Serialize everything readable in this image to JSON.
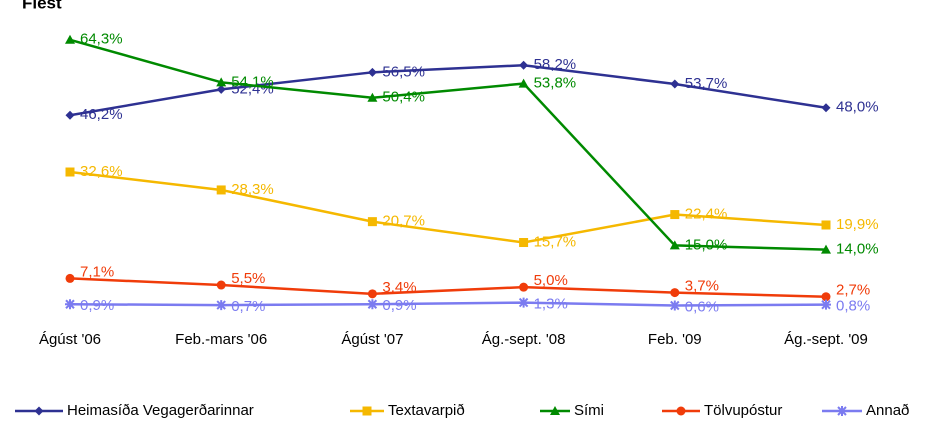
{
  "chart_data": {
    "type": "line",
    "title": "Flest",
    "categories": [
      "Ágúst '06",
      "Feb.-mars '06",
      "Ágúst '07",
      "Ág.-sept. '08",
      "Feb. '09",
      "Ág.-sept. '09"
    ],
    "ylim": [
      0,
      70
    ],
    "series": [
      {
        "name": "Heimasíða Vegagerðarinnar",
        "color": "#2e3192",
        "values": [
          46.2,
          52.4,
          56.5,
          58.2,
          53.7,
          48.0
        ],
        "value_labels": [
          "46,2%",
          "52,4%",
          "56,5%",
          "58,2%",
          "53,7%",
          "48,0%"
        ]
      },
      {
        "name": "Textavarpið",
        "color": "#f5b800",
        "values": [
          32.6,
          28.3,
          20.7,
          15.7,
          22.4,
          19.9
        ],
        "value_labels": [
          "32,6%",
          "28,3%",
          "20,7%",
          "15,7%",
          "22,4%",
          "19,9%"
        ]
      },
      {
        "name": "Sími",
        "color": "#008a00",
        "values": [
          64.3,
          54.1,
          50.4,
          53.8,
          15.0,
          14.0
        ],
        "value_labels": [
          "64,3%",
          "54,1%",
          "50,4%",
          "53,8%",
          "15,0%",
          "14,0%"
        ]
      },
      {
        "name": "Tölvupóstur",
        "color": "#f03c0a",
        "values": [
          7.1,
          5.5,
          3.4,
          5.0,
          3.7,
          2.7
        ],
        "value_labels": [
          "7,1%",
          "5,5%",
          "3,4%",
          "5,0%",
          "3,7%",
          "2,7%"
        ]
      },
      {
        "name": "Annað",
        "color": "#7b7bf0",
        "values": [
          0.9,
          0.7,
          0.9,
          1.3,
          0.6,
          0.8
        ],
        "value_labels": [
          "0,9%",
          "0,7%",
          "0,9%",
          "1,3%",
          "0,6%",
          "0,8%"
        ]
      }
    ]
  }
}
